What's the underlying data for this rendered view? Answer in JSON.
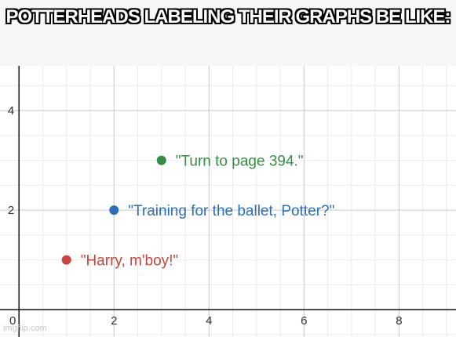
{
  "caption": "POTTERHEADS LABELING THEIR GRAPHS BE LIKE:",
  "watermark": "imgflip.com",
  "chart_data": {
    "type": "scatter",
    "xlim": [
      -0.4,
      9.2
    ],
    "ylim": [
      -0.55,
      4.9
    ],
    "x_ticks": [
      0,
      2,
      4,
      6,
      8
    ],
    "y_ticks": [
      2,
      4
    ],
    "grid": true,
    "points": [
      {
        "x": 3,
        "y": 3,
        "label": "\"Turn to page 394.\"",
        "color": "#388c46"
      },
      {
        "x": 2,
        "y": 2,
        "label": "\"Training for the ballet, Potter?\"",
        "color": "#2d70b3"
      },
      {
        "x": 1,
        "y": 1,
        "label": "\"Harry, m'boy!\"",
        "color": "#c74440"
      }
    ]
  }
}
